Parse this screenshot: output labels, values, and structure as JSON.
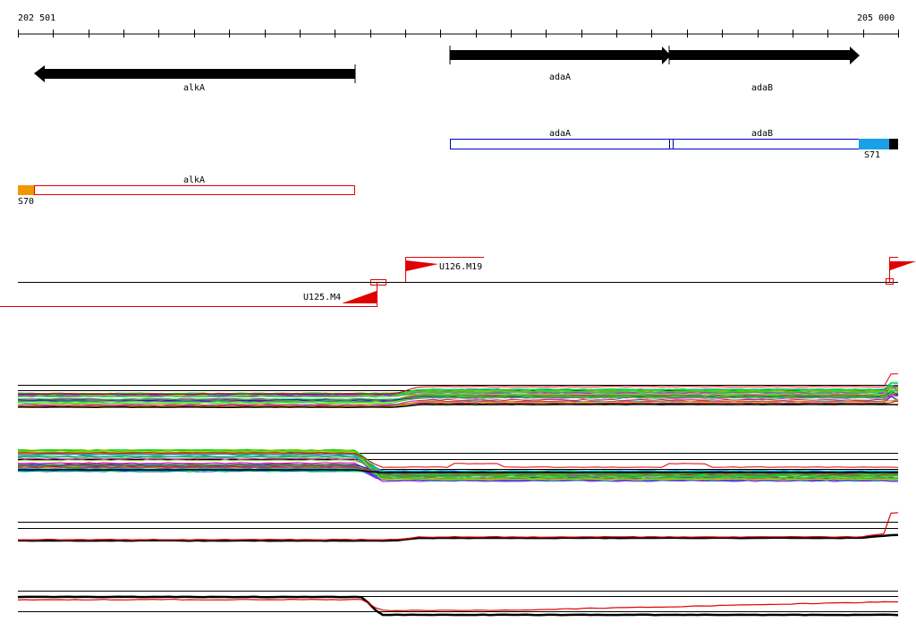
{
  "axis": {
    "start_label": "202 501",
    "end_label": "205 000"
  },
  "genes": [
    {
      "name": "alkA",
      "strand": "-",
      "label": "alkA"
    },
    {
      "name": "adaA",
      "strand": "+",
      "label": "adaA"
    },
    {
      "name": "adaB",
      "strand": "+",
      "label": "adaB"
    }
  ],
  "transcripts": [
    {
      "label_a": "adaA",
      "label_b": "adaB",
      "color": "#0000cc",
      "sigma": "S71",
      "sigma_color": "#1aa0e6"
    },
    {
      "label": "alkA",
      "color": "#e00000",
      "sigma": "S70",
      "sigma_color": "#f29600"
    }
  ],
  "upshifts": [
    {
      "label": "U126.M19",
      "color": "#e00000"
    },
    {
      "label": "U125.M4",
      "color": "#e00000"
    }
  ],
  "colors": {
    "black": "#000000",
    "red": "#e00000",
    "blue": "#0000cc"
  }
}
